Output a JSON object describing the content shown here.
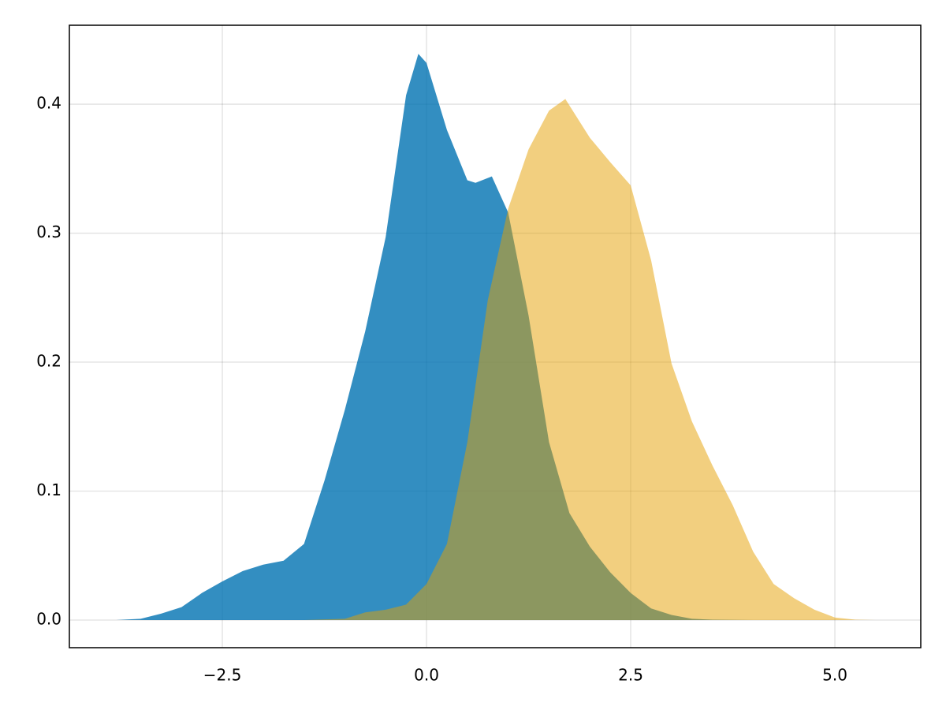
{
  "chart_data": {
    "type": "density",
    "xlim": [
      -4.373,
      6.052
    ],
    "ylim": [
      -0.0214,
      0.4612
    ],
    "xticks": [
      {
        "value": -2.5,
        "label": "−2.5"
      },
      {
        "value": 0,
        "label": "0.0"
      },
      {
        "value": 2.5,
        "label": "2.5"
      },
      {
        "value": 5,
        "label": "5.0"
      }
    ],
    "yticks": [
      {
        "value": 0,
        "label": "0.0"
      },
      0.1,
      0.2,
      0.3,
      0.4
    ],
    "grid": true,
    "series": [
      {
        "color": "#0072b2",
        "x": [
          -3.8,
          -3.5,
          -3.25,
          -3.0,
          -2.75,
          -2.5,
          -2.25,
          -2.0,
          -1.75,
          -1.5,
          -1.25,
          -1.0,
          -0.75,
          -0.5,
          -0.25,
          -0.1,
          0,
          0.25,
          0.5,
          0.6,
          0.8,
          1.0,
          1.25,
          1.5,
          1.75,
          2.0,
          2.25,
          2.5,
          2.75,
          3.0,
          3.25,
          3.5,
          4.0
        ],
        "values": [
          0,
          0.001,
          0.005,
          0.01,
          0.021,
          0.03,
          0.038,
          0.043,
          0.046,
          0.059,
          0.108,
          0.163,
          0.224,
          0.297,
          0.407,
          0.439,
          0.432,
          0.38,
          0.341,
          0.339,
          0.344,
          0.316,
          0.236,
          0.138,
          0.083,
          0.057,
          0.037,
          0.021,
          0.009,
          0.004,
          0.001,
          0.0003,
          0
        ]
      },
      {
        "color": "#e69f00",
        "x": [
          -1.5,
          -1.0,
          -0.75,
          -0.5,
          -0.25,
          0,
          0.25,
          0.5,
          0.75,
          1.0,
          1.25,
          1.5,
          1.7,
          2.0,
          2.25,
          2.5,
          2.75,
          3.0,
          3.25,
          3.5,
          3.75,
          4.0,
          4.25,
          4.5,
          4.75,
          5.0,
          5.25,
          5.5
        ],
        "values": [
          0,
          0.001,
          0.006,
          0.008,
          0.012,
          0.028,
          0.059,
          0.138,
          0.248,
          0.319,
          0.365,
          0.395,
          0.404,
          0.374,
          0.355,
          0.337,
          0.279,
          0.199,
          0.154,
          0.12,
          0.089,
          0.053,
          0.028,
          0.017,
          0.008,
          0.002,
          0.0003,
          0
        ]
      }
    ]
  }
}
